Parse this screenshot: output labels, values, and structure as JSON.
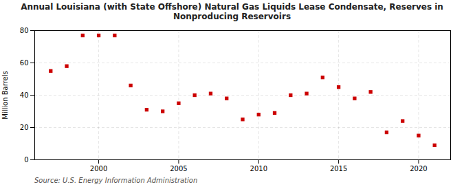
{
  "chart_data": {
    "type": "scatter",
    "title": "Annual Louisiana (with State Offshore) Natural Gas Liquids Lease Condensate, Reserves in\nNonproducing Reservoirs",
    "ylabel": "Million Barrels",
    "annotations": [
      "Source: U.S. Energy Information Administration"
    ],
    "x": [
      1997,
      1998,
      1999,
      2000,
      2001,
      2002,
      2003,
      2004,
      2005,
      2006,
      2007,
      2008,
      2009,
      2010,
      2011,
      2012,
      2013,
      2014,
      2015,
      2016,
      2017,
      2018,
      2019,
      2020,
      2021
    ],
    "values": [
      55,
      58,
      77,
      77,
      77,
      46,
      31,
      30,
      35,
      40,
      41,
      38,
      25,
      28,
      29,
      40,
      41,
      51,
      45,
      38,
      42,
      17,
      24,
      15,
      9
    ],
    "color": "#cc0000",
    "marker": "square",
    "xlim": [
      1996,
      2022
    ],
    "xticks": [
      2000,
      2005,
      2010,
      2015,
      2020
    ],
    "ylim": [
      0,
      80
    ],
    "yticks": [
      0,
      20,
      40,
      60,
      80
    ],
    "grid": true
  }
}
